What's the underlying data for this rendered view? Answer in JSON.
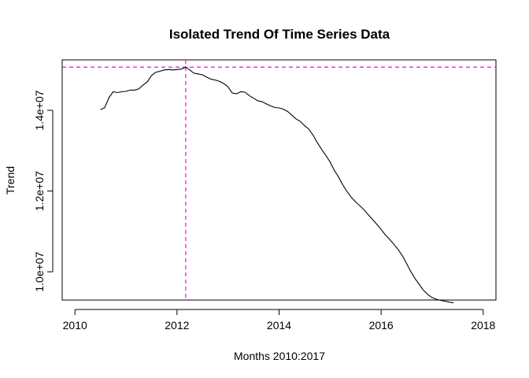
{
  "chart_data": {
    "type": "line",
    "title": "Isolated Trend Of Time Series Data",
    "xlabel": "Months 2010:2017",
    "ylabel": "Trend",
    "xlim": [
      2009.75,
      2018.25
    ],
    "ylim": [
      9300000,
      15250000
    ],
    "x_ticks": [
      2010,
      2012,
      2014,
      2016,
      2018
    ],
    "x_tick_labels": [
      "2010",
      "2012",
      "2014",
      "2016",
      "2018"
    ],
    "y_ticks": [
      10000000,
      12000000,
      14000000
    ],
    "y_tick_labels": [
      "1.0e+07",
      "1.2e+07",
      "1.4e+07"
    ],
    "grid": false,
    "reference_lines": {
      "color": "#ff00ff",
      "style": "dashed",
      "horizontal_y": 15070000,
      "vertical_x": 2012.17
    },
    "series": [
      {
        "color": "#000000",
        "x": [
          2010.5,
          2010.58,
          2010.67,
          2010.75,
          2010.83,
          2010.92,
          2011.0,
          2011.08,
          2011.17,
          2011.25,
          2011.33,
          2011.42,
          2011.5,
          2011.58,
          2011.67,
          2011.75,
          2011.83,
          2011.92,
          2012.0,
          2012.08,
          2012.17,
          2012.25,
          2012.33,
          2012.42,
          2012.5,
          2012.58,
          2012.67,
          2012.75,
          2012.83,
          2012.92,
          2013.0,
          2013.08,
          2013.17,
          2013.25,
          2013.33,
          2013.42,
          2013.5,
          2013.58,
          2013.67,
          2013.75,
          2013.83,
          2013.92,
          2014.0,
          2014.08,
          2014.17,
          2014.25,
          2014.33,
          2014.42,
          2014.5,
          2014.58,
          2014.67,
          2014.75,
          2014.83,
          2014.92,
          2015.0,
          2015.08,
          2015.17,
          2015.25,
          2015.33,
          2015.42,
          2015.5,
          2015.58,
          2015.67,
          2015.75,
          2015.83,
          2015.92,
          2016.0,
          2016.08,
          2016.17,
          2016.25,
          2016.33,
          2016.42,
          2016.5,
          2016.58,
          2016.67,
          2016.75,
          2016.83,
          2016.92,
          2017.0,
          2017.08,
          2017.17,
          2017.25,
          2017.33,
          2017.42
        ],
        "values": [
          14020000,
          14060000,
          14320000,
          14460000,
          14440000,
          14460000,
          14470000,
          14500000,
          14500000,
          14530000,
          14620000,
          14710000,
          14860000,
          14940000,
          14970000,
          15000000,
          15010000,
          15000000,
          15010000,
          15020000,
          15070000,
          15000000,
          14920000,
          14900000,
          14880000,
          14820000,
          14770000,
          14750000,
          14720000,
          14660000,
          14580000,
          14430000,
          14410000,
          14460000,
          14450000,
          14360000,
          14300000,
          14240000,
          14210000,
          14160000,
          14110000,
          14070000,
          14060000,
          14030000,
          13970000,
          13880000,
          13790000,
          13720000,
          13620000,
          13540000,
          13380000,
          13200000,
          13040000,
          12880000,
          12720000,
          12520000,
          12340000,
          12150000,
          11990000,
          11840000,
          11730000,
          11640000,
          11530000,
          11410000,
          11300000,
          11170000,
          11050000,
          10920000,
          10800000,
          10680000,
          10560000,
          10390000,
          10200000,
          10010000,
          9820000,
          9680000,
          9540000,
          9430000,
          9360000,
          9320000,
          9290000,
          9270000,
          9250000,
          9230000
        ]
      }
    ]
  }
}
